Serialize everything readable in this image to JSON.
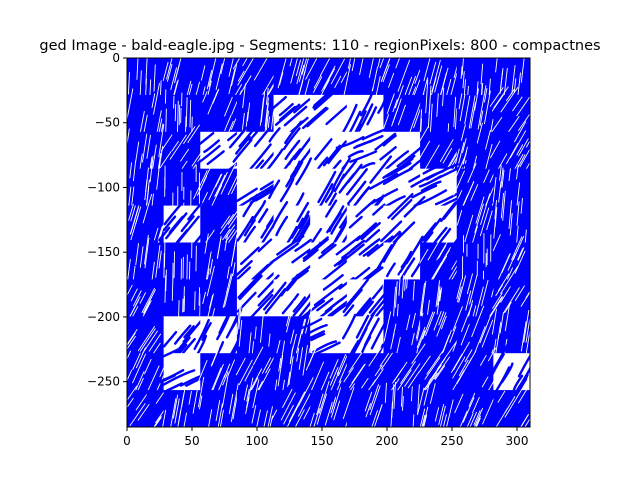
{
  "chart_data": {
    "type": "image",
    "title": "ged Image - bald-eagle.jpg - Segments: 110 - regionPixels: 800 - compactnes",
    "xlabel": "",
    "ylabel": "",
    "xlim": [
      0,
      310
    ],
    "ylim": [
      -285,
      0
    ],
    "xticks": [
      0,
      50,
      100,
      150,
      200,
      250,
      300
    ],
    "yticks": [
      0,
      -50,
      -100,
      -150,
      -200,
      -250
    ],
    "grid": false,
    "stroke_color": "#0000ff",
    "background_color": "#ffffff",
    "tile_grid": {
      "cols": 11,
      "rows": 10
    },
    "tile_levels": [
      [
        1,
        1,
        1,
        1,
        1,
        1,
        1,
        1,
        1,
        1,
        1
      ],
      [
        1,
        1,
        1,
        1,
        0,
        0,
        0,
        1,
        1,
        1,
        1
      ],
      [
        1,
        1,
        0,
        0,
        0,
        0,
        0,
        0,
        1,
        1,
        1
      ],
      [
        1,
        1,
        1,
        0,
        0,
        0,
        0,
        0,
        0,
        1,
        1
      ],
      [
        1,
        0,
        1,
        0,
        0,
        0,
        0,
        0,
        0,
        1,
        1
      ],
      [
        1,
        1,
        1,
        0,
        0,
        0,
        0,
        0,
        1,
        1,
        1
      ],
      [
        1,
        1,
        1,
        0,
        0,
        0,
        0,
        1,
        1,
        1,
        1
      ],
      [
        1,
        0,
        0,
        1,
        1,
        0,
        0,
        1,
        1,
        1,
        1
      ],
      [
        1,
        0,
        1,
        1,
        1,
        1,
        1,
        1,
        1,
        1,
        0
      ],
      [
        1,
        1,
        1,
        1,
        1,
        1,
        1,
        1,
        1,
        1,
        1
      ]
    ]
  }
}
